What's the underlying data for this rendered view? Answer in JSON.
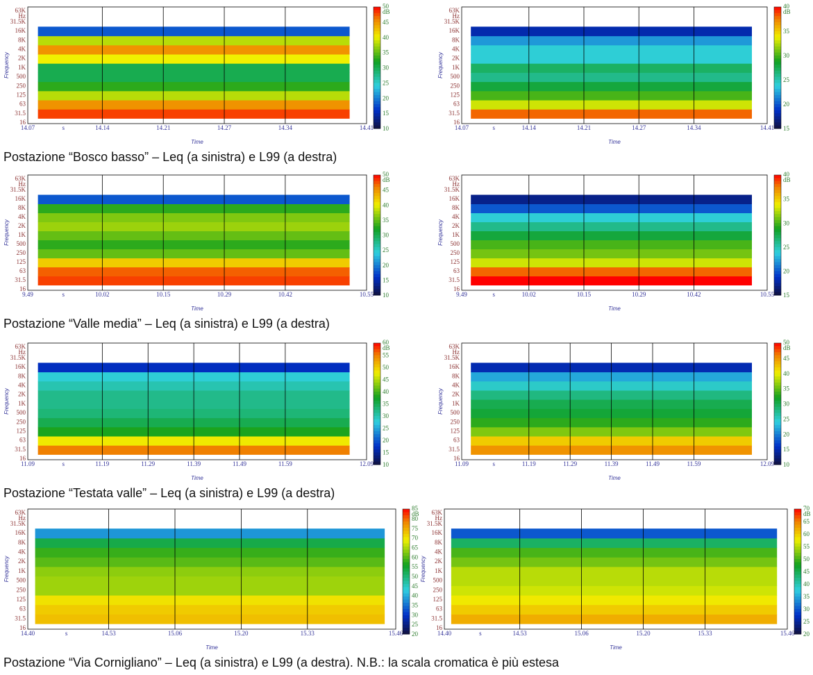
{
  "panels": [
    {
      "y_label": "Frequency",
      "y_unit": "Hz",
      "yticks": [
        "63K",
        "31.5K",
        "16K",
        "8K",
        "4K",
        "2K",
        "1K",
        "500",
        "250",
        "125",
        "63",
        "31.5",
        "16"
      ],
      "x_label": "Time",
      "x_unit": "s",
      "xticks": [
        "14.07",
        "14.14",
        "14.21",
        "14.27",
        "14.34",
        "14.41"
      ],
      "cbar_unit": "dB",
      "cbar_ticks": [
        50,
        45,
        40,
        35,
        30,
        25,
        20,
        15,
        10
      ],
      "levels": [
        48,
        45,
        38,
        33,
        30,
        30,
        40,
        45,
        38,
        18
      ]
    },
    {
      "y_label": "Frequency",
      "y_unit": "Hz",
      "yticks": [
        "63K",
        "31.5K",
        "16K",
        "8K",
        "4K",
        "2K",
        "1K",
        "500",
        "250",
        "125",
        "63",
        "31.5",
        "16"
      ],
      "x_label": "Time",
      "x_unit": "s",
      "xticks": [
        "14.07",
        "14.14",
        "14.21",
        "14.27",
        "14.34",
        "14.41"
      ],
      "cbar_unit": "dB",
      "cbar_ticks": [
        40,
        35,
        30,
        25,
        20,
        15
      ],
      "levels": [
        38,
        33,
        30,
        28,
        26,
        27,
        24,
        24,
        22,
        18
      ]
    },
    {
      "y_label": "Frequency",
      "y_unit": "Hz",
      "yticks": [
        "63K",
        "31.5K",
        "16K",
        "8K",
        "4K",
        "2K",
        "1K",
        "500",
        "250",
        "125",
        "63",
        "31.5",
        "16"
      ],
      "x_label": "Time",
      "x_unit": "s",
      "xticks": [
        "9.49",
        "10.02",
        "10.15",
        "10.29",
        "10.42",
        "10.55"
      ],
      "cbar_unit": "dB",
      "cbar_ticks": [
        50,
        45,
        40,
        35,
        30,
        25,
        20,
        15,
        10
      ],
      "levels": [
        48,
        47,
        42,
        35,
        33,
        35,
        37,
        36,
        33,
        18
      ]
    },
    {
      "y_label": "Frequency",
      "y_unit": "Hz",
      "yticks": [
        "63K",
        "31.5K",
        "16K",
        "8K",
        "4K",
        "2K",
        "1K",
        "500",
        "250",
        "125",
        "63",
        "31.5",
        "16"
      ],
      "x_label": "Time",
      "x_unit": "s",
      "xticks": [
        "9.49",
        "10.02",
        "10.15",
        "10.29",
        "10.42",
        "10.55"
      ],
      "cbar_unit": "dB",
      "cbar_ticks": [
        40,
        35,
        30,
        25,
        20,
        15
      ],
      "levels": [
        40,
        38,
        33,
        31,
        30,
        28,
        26,
        24,
        20,
        17
      ]
    },
    {
      "y_label": "Frequency",
      "y_unit": "Hz",
      "yticks": [
        "63K",
        "31.5K",
        "16K",
        "8K",
        "4K",
        "2K",
        "1K",
        "500",
        "250",
        "125",
        "63",
        "31.5",
        "16"
      ],
      "x_label": "Time",
      "x_unit": "s",
      "xticks": [
        "11.09",
        "11.19",
        "11.29",
        "11.39",
        "11.49",
        "11.59",
        "12.09"
      ],
      "cbar_unit": "dB",
      "cbar_ticks": [
        60,
        55,
        50,
        45,
        40,
        35,
        30,
        25,
        20,
        15,
        10
      ],
      "levels": [
        55,
        48,
        38,
        35,
        33,
        32,
        32,
        30,
        28,
        17
      ]
    },
    {
      "y_label": "Frequency",
      "y_unit": "Hz",
      "yticks": [
        "63K",
        "31.5K",
        "16K",
        "8K",
        "4K",
        "2K",
        "1K",
        "500",
        "250",
        "125",
        "63",
        "31.5",
        "16"
      ],
      "x_label": "Time",
      "x_unit": "s",
      "xticks": [
        "11.09",
        "11.19",
        "11.29",
        "11.39",
        "11.49",
        "11.59",
        "12.09"
      ],
      "cbar_unit": "dB",
      "cbar_ticks": [
        50,
        45,
        40,
        35,
        30,
        25,
        20,
        15,
        10
      ],
      "levels": [
        45,
        42,
        36,
        33,
        31,
        30,
        28,
        25,
        22,
        15
      ]
    },
    {
      "y_label": "Frequency",
      "y_unit": "Hz",
      "yticks": [
        "63K",
        "31.5K",
        "16K",
        "8K",
        "4K",
        "2K",
        "1K",
        "500",
        "250",
        "125",
        "63",
        "31.5",
        "16"
      ],
      "x_label": "Time",
      "x_unit": "s",
      "xticks": [
        "14.40",
        "14.53",
        "15.06",
        "15.20",
        "15.33",
        "15.46"
      ],
      "cbar_unit": "dB",
      "cbar_ticks": [
        85,
        80,
        75,
        70,
        65,
        60,
        55,
        50,
        45,
        40,
        35,
        30,
        25,
        20
      ],
      "levels": [
        73,
        72,
        70,
        64,
        64,
        63,
        60,
        58,
        53,
        38
      ]
    },
    {
      "y_label": "Frequency",
      "y_unit": "Hz",
      "yticks": [
        "63K",
        "31.5K",
        "16K",
        "8K",
        "4K",
        "2K",
        "1K",
        "500",
        "250",
        "125",
        "63",
        "31.5",
        "16"
      ],
      "x_label": "Time",
      "x_unit": "s",
      "xticks": [
        "14.40",
        "14.53",
        "15.06",
        "15.20",
        "15.33",
        "15.46"
      ],
      "cbar_unit": "dB",
      "cbar_ticks": [
        70,
        65,
        60,
        55,
        50,
        45,
        40,
        35,
        30,
        25,
        20
      ],
      "levels": [
        62,
        60,
        58,
        56,
        55,
        55,
        52,
        50,
        44,
        30
      ]
    }
  ],
  "captions": [
    "Postazione “Bosco basso”  – Leq  (a sinistra) e L99 (a destra)",
    "Postazione “Valle media”  – Leq  (a sinistra) e L99 (a destra)",
    "Postazione “Testata valle”  – Leq  (a sinistra) e L99 (a destra)",
    "Postazione “Via Cornigliano”  – Leq  (a sinistra) e L99 (a destra). N.B.: la scala cromatica è più estesa"
  ]
}
